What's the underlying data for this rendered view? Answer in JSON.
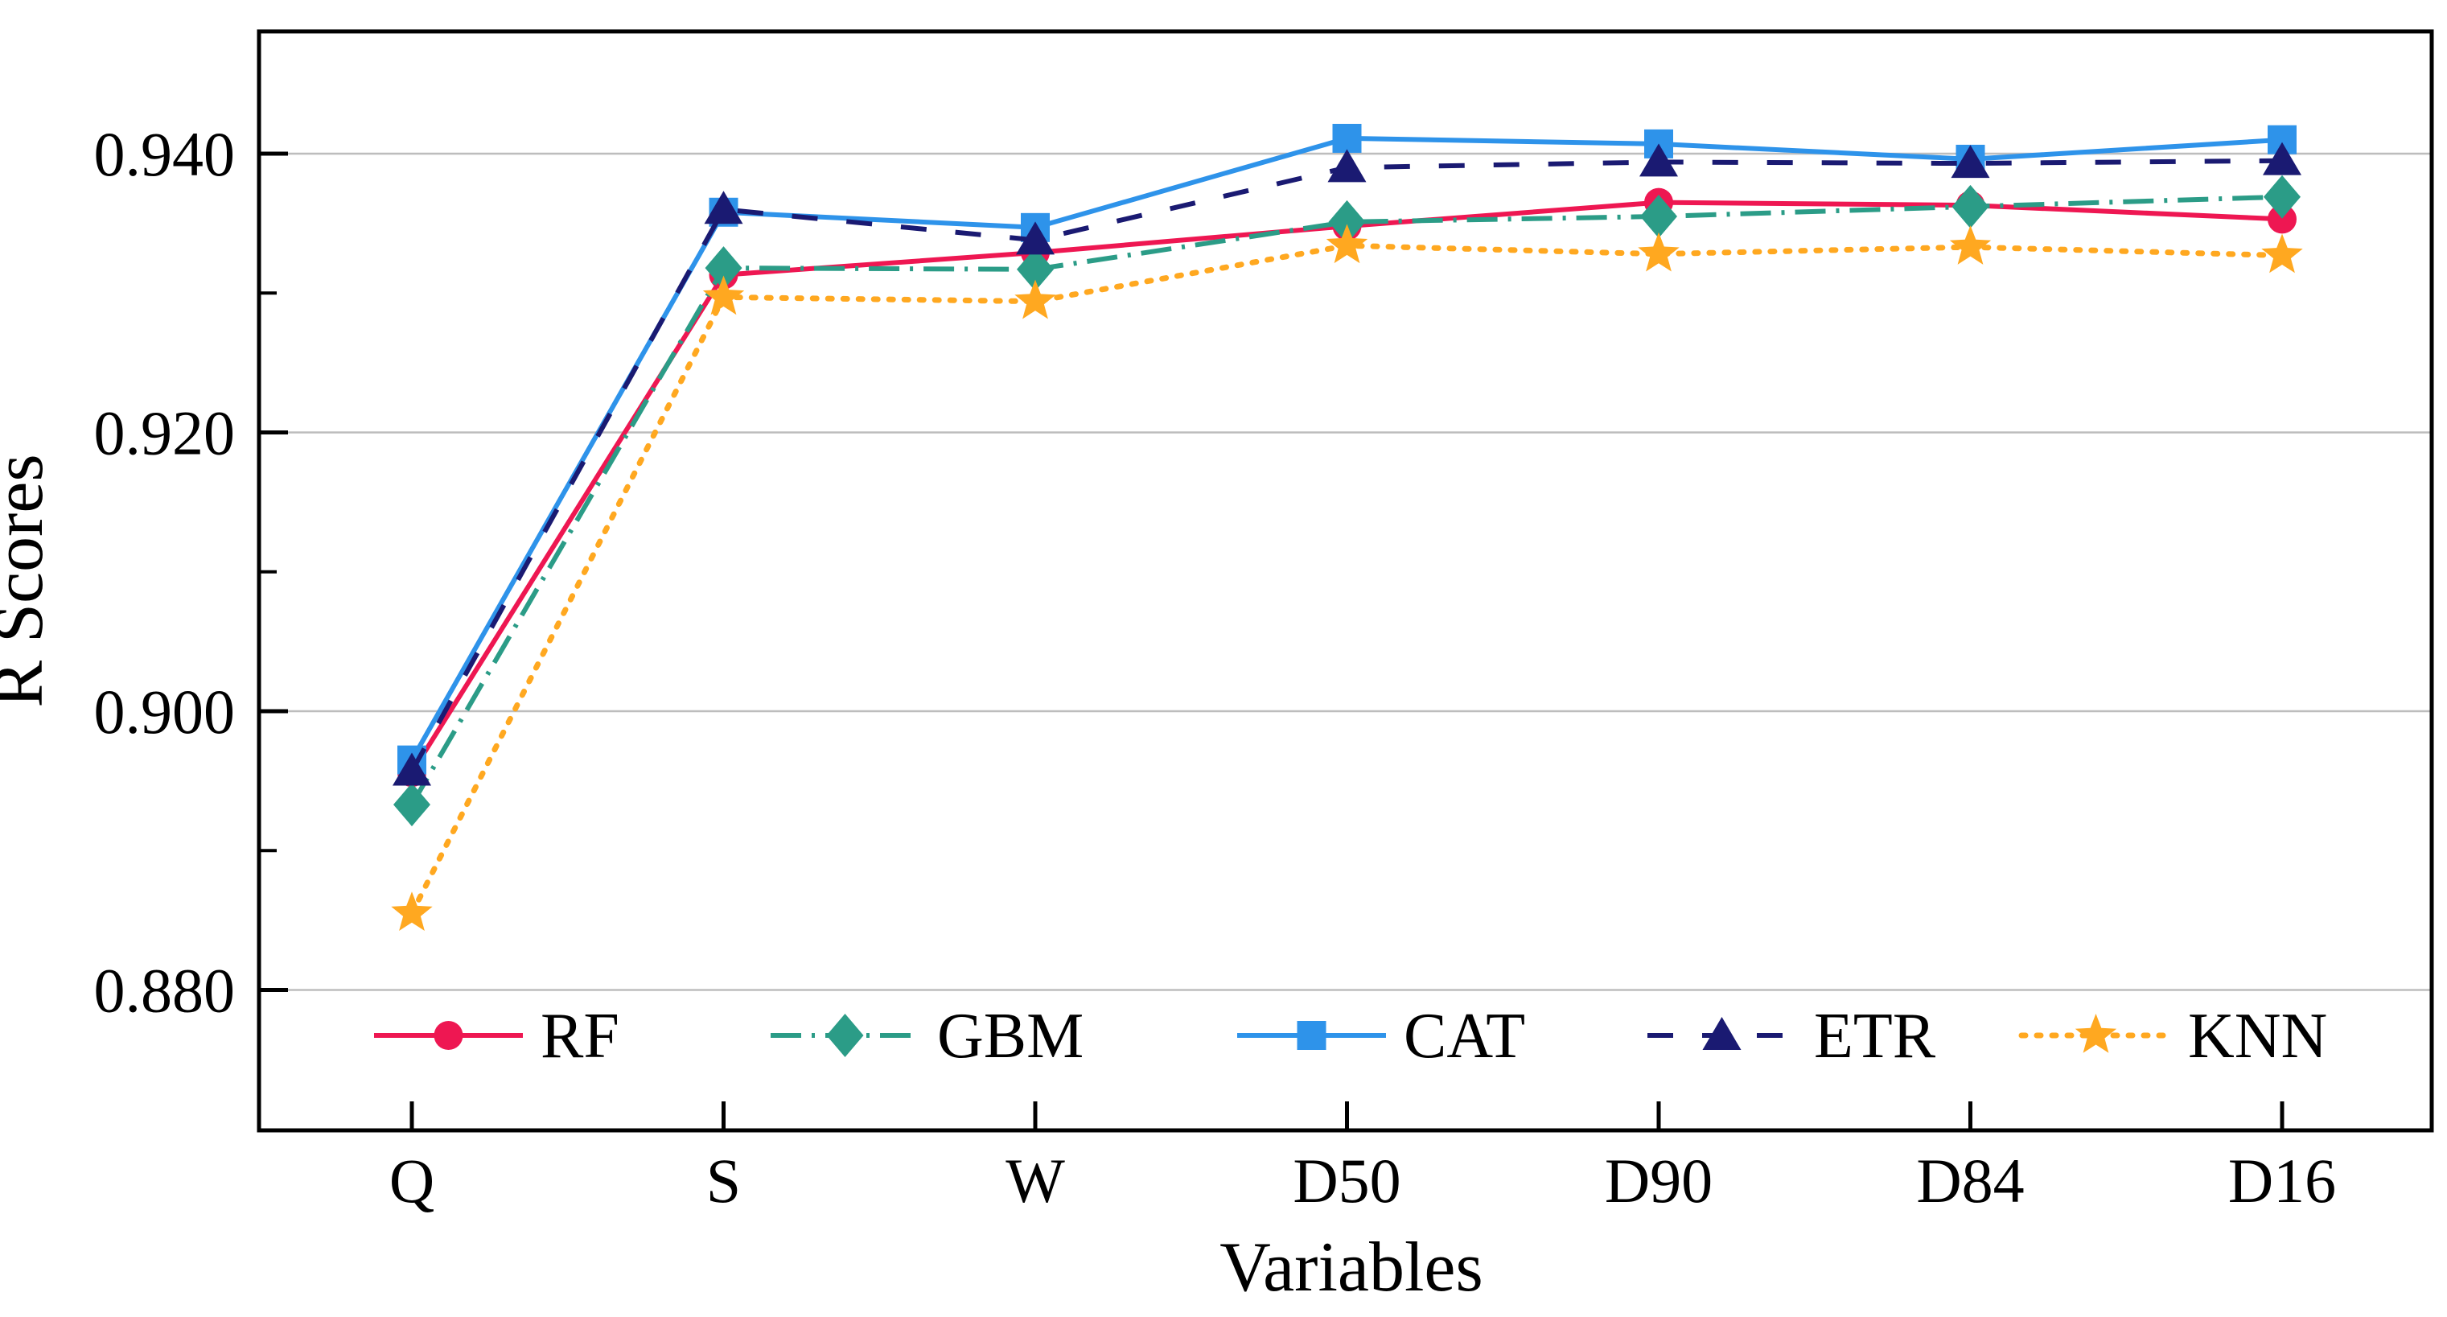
{
  "figure": {
    "background": "#FFFFFF",
    "axis_color": "#000000",
    "grid_color": "#BDBDBD"
  },
  "chart_data": {
    "type": "line",
    "title": "",
    "xlabel": "Variables",
    "ylabel": "R Scores",
    "categories": [
      "Q",
      "S",
      "W",
      "D50",
      "D90",
      "D84",
      "D16"
    ],
    "ylim": [
      0.87,
      0.949
    ],
    "yticks_major": [
      0.88,
      0.9,
      0.92,
      0.94
    ],
    "yticks_minor": [
      0.89,
      0.91,
      0.93
    ],
    "ytick_decimals": 3,
    "grid": {
      "horizontal_major": true,
      "vertical": false
    },
    "legend": {
      "position": "inside-bottom",
      "orientation": "horizontal",
      "entries": [
        "RF",
        "GBM",
        "CAT",
        "ETR",
        "KNN"
      ]
    },
    "series": [
      {
        "name": "RF",
        "color": "#EE1752",
        "line_style": "solid",
        "marker": "circle",
        "values": [
          0.8956,
          0.9313,
          0.9329,
          0.9348,
          0.9365,
          0.9363,
          0.9353
        ]
      },
      {
        "name": "GBM",
        "color": "#2B9C87",
        "line_style": "dashdot",
        "marker": "diamond",
        "values": [
          0.8933,
          0.9318,
          0.9317,
          0.9351,
          0.9355,
          0.9362,
          0.9369
        ]
      },
      {
        "name": "CAT",
        "color": "#2E93EA",
        "line_style": "solid",
        "marker": "square",
        "values": [
          0.8965,
          0.9358,
          0.9347,
          0.9411,
          0.9407,
          0.9396,
          0.941
        ]
      },
      {
        "name": "ETR",
        "color": "#1A1A72",
        "line_style": "dashed",
        "marker": "triangle",
        "values": [
          0.8957,
          0.936,
          0.9338,
          0.939,
          0.9394,
          0.9393,
          0.9395
        ]
      },
      {
        "name": "KNN",
        "color": "#FFA820",
        "line_style": "dotted",
        "marker": "star",
        "values": [
          0.8855,
          0.9297,
          0.9294,
          0.9334,
          0.9328,
          0.9333,
          0.9327
        ]
      }
    ]
  }
}
